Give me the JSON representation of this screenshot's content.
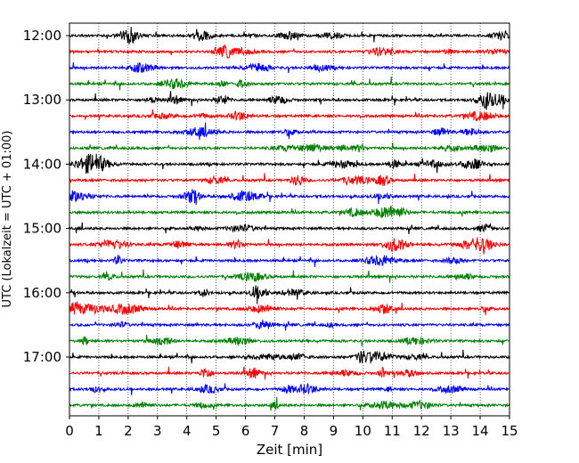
{
  "chart_data": {
    "type": "line",
    "description_free": true,
    "xlabel": "Zeit  [min]",
    "ylabel": "UTC (Lokalzeit = UTC + 01:00)",
    "xlim": [
      0,
      15
    ],
    "x_ticks": [
      0,
      1,
      2,
      3,
      4,
      5,
      6,
      7,
      8,
      9,
      10,
      11,
      12,
      13,
      14,
      15
    ],
    "x_grid": true,
    "y_tick_labels": [
      "12:00",
      "13:00",
      "14:00",
      "15:00",
      "16:00",
      "17:00"
    ],
    "trace_interval_minutes": 15,
    "start_time": "12:00",
    "trace_count": 24,
    "trace_colors": [
      "#000000",
      "#ff0000",
      "#0000ff",
      "#008000"
    ]
  }
}
